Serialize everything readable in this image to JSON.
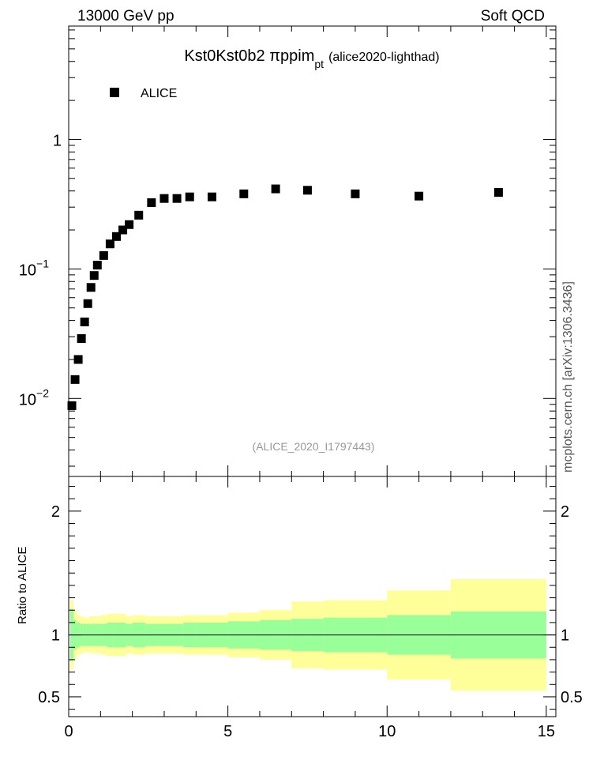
{
  "header": {
    "left": "13000 GeV pp",
    "right": "Soft QCD"
  },
  "side_label": "mcplots.cern.ch [arXiv:1306.3436]",
  "chart_data": [
    {
      "type": "scatter",
      "title_main": "Kst0Kst0b2 πppim",
      "title_sub": "pt",
      "title_paren": "(alice2020-lighthad)",
      "analysis_label": "(ALICE_2020_I1797443)",
      "legend": [
        {
          "name": "ALICE",
          "marker": "square",
          "color": "#000000"
        }
      ],
      "legend_placement": "top-left",
      "xlim": [
        0,
        15.3
      ],
      "ylim": [
        0.0025,
        7.5
      ],
      "yscale": "log",
      "y_tick_labels": [
        {
          "value": 0.01,
          "base": "10",
          "exp": "−2"
        },
        {
          "value": 0.1,
          "base": "10",
          "exp": "−1"
        },
        {
          "value": 1,
          "base": "1",
          "exp": ""
        }
      ],
      "series": [
        {
          "name": "ALICE",
          "x": [
            0.1,
            0.2,
            0.3,
            0.4,
            0.5,
            0.6,
            0.7,
            0.8,
            0.9,
            1.1,
            1.3,
            1.5,
            1.7,
            1.9,
            2.2,
            2.6,
            3.0,
            3.4,
            3.8,
            4.5,
            5.5,
            6.5,
            7.5,
            9.0,
            11.0,
            13.5
          ],
          "y": [
            0.0088,
            0.014,
            0.02,
            0.029,
            0.039,
            0.054,
            0.072,
            0.089,
            0.107,
            0.127,
            0.156,
            0.178,
            0.2,
            0.22,
            0.26,
            0.325,
            0.35,
            0.35,
            0.36,
            0.36,
            0.38,
            0.415,
            0.405,
            0.38,
            0.365,
            0.39
          ]
        }
      ]
    },
    {
      "type": "area",
      "ylabel": "Ratio to ALICE",
      "xlim": [
        0,
        15.3
      ],
      "ylim": [
        0.34,
        2.28
      ],
      "x_ticks": [
        0,
        5,
        10,
        15
      ],
      "x_tick_labels": [
        "0",
        "5",
        "10",
        "15"
      ],
      "y_ticks": [
        0.5,
        1,
        2
      ],
      "y_tick_labels": [
        "0.5",
        "1",
        "2"
      ],
      "reference_line": 1,
      "bins": [
        0.05,
        0.15,
        0.25,
        0.35,
        0.45,
        0.55,
        0.65,
        0.75,
        0.85,
        1.0,
        1.2,
        1.4,
        1.6,
        1.8,
        2.0,
        2.4,
        2.8,
        3.2,
        3.6,
        4.0,
        5.0,
        6.0,
        7.0,
        8.0,
        10.0,
        12.0,
        15.0
      ],
      "band_inner": [
        0.21,
        0.12,
        0.1,
        0.09,
        0.09,
        0.09,
        0.09,
        0.09,
        0.09,
        0.09,
        0.1,
        0.1,
        0.1,
        0.09,
        0.1,
        0.09,
        0.09,
        0.09,
        0.1,
        0.1,
        0.11,
        0.12,
        0.13,
        0.14,
        0.16,
        0.19
      ],
      "band_outer": [
        0.28,
        0.2,
        0.16,
        0.15,
        0.14,
        0.14,
        0.15,
        0.15,
        0.15,
        0.16,
        0.17,
        0.17,
        0.17,
        0.15,
        0.16,
        0.15,
        0.15,
        0.15,
        0.16,
        0.16,
        0.18,
        0.2,
        0.27,
        0.28,
        0.36,
        0.45
      ],
      "band_inner_color": "#99ff99",
      "band_outer_color": "#ffff99"
    }
  ]
}
